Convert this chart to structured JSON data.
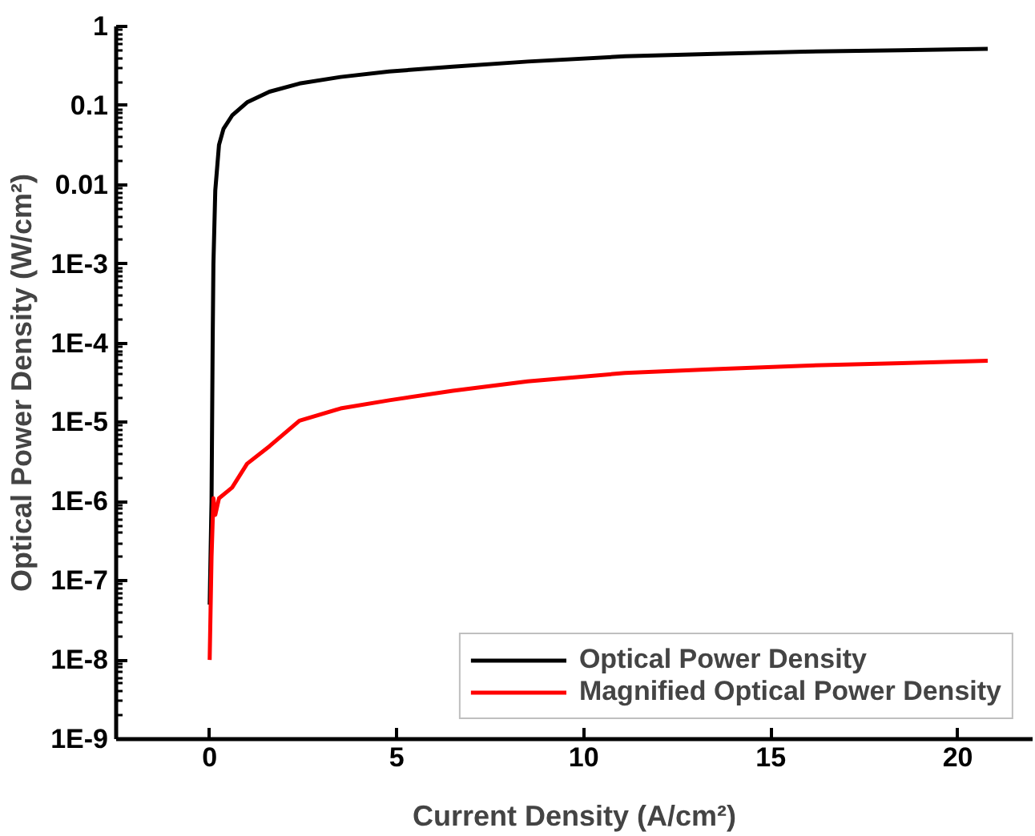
{
  "chart_data": {
    "type": "line",
    "xlabel": "Current Density (A/cm²)",
    "ylabel": "Optical Power Density (W/cm²)",
    "log": "y",
    "xlim": [
      -2.5,
      22
    ],
    "xticks": [
      0,
      5,
      10,
      15,
      20
    ],
    "ylim": [
      1e-09,
      1
    ],
    "yticks": [
      {
        "value": 1e-09,
        "label": "1E-9"
      },
      {
        "value": 1e-08,
        "label": "1E-8"
      },
      {
        "value": 1e-07,
        "label": "1E-7"
      },
      {
        "value": 1e-06,
        "label": "1E-6"
      },
      {
        "value": 1e-05,
        "label": "1E-5"
      },
      {
        "value": 0.0001,
        "label": "1E-4"
      },
      {
        "value": 0.001,
        "label": "1E-3"
      },
      {
        "value": 0.01,
        "label": "0.01"
      },
      {
        "value": 0.1,
        "label": "0.1"
      },
      {
        "value": 1,
        "label": "1"
      }
    ],
    "grid": false,
    "legend": "bottom right",
    "line_style": "solid",
    "series": [
      {
        "name": "Optical Power Density",
        "color": "#000000",
        "x": [
          0,
          0.05,
          0.08,
          0.1,
          0.15,
          0.25,
          0.37,
          0.6,
          1.0,
          1.6,
          2.4,
          3.5,
          4.8,
          6.5,
          8.5,
          11.1,
          13.5,
          15.9,
          18.5,
          20.8
        ],
        "values": [
          5e-08,
          1e-06,
          0.0001,
          0.001,
          0.0085,
          0.032,
          0.051,
          0.075,
          0.11,
          0.15,
          0.19,
          0.23,
          0.27,
          0.31,
          0.36,
          0.42,
          0.45,
          0.48,
          0.5,
          0.52
        ]
      },
      {
        "name": "Magnified Optical Power Density",
        "color": "#ff0000",
        "x": [
          0,
          0.05,
          0.1,
          0.15,
          0.25,
          0.6,
          1.0,
          1.6,
          2.4,
          3.5,
          4.8,
          6.5,
          8.5,
          11.1,
          13.5,
          15.9,
          18.5,
          20.8
        ],
        "values": [
          1e-08,
          2e-07,
          1.1e-06,
          6.8e-07,
          1.1e-06,
          1.5e-06,
          3e-06,
          5e-06,
          1.05e-05,
          1.5e-05,
          1.9e-05,
          2.5e-05,
          3.3e-05,
          4.2e-05,
          4.7e-05,
          5.2e-05,
          5.6e-05,
          6e-05
        ]
      }
    ]
  }
}
